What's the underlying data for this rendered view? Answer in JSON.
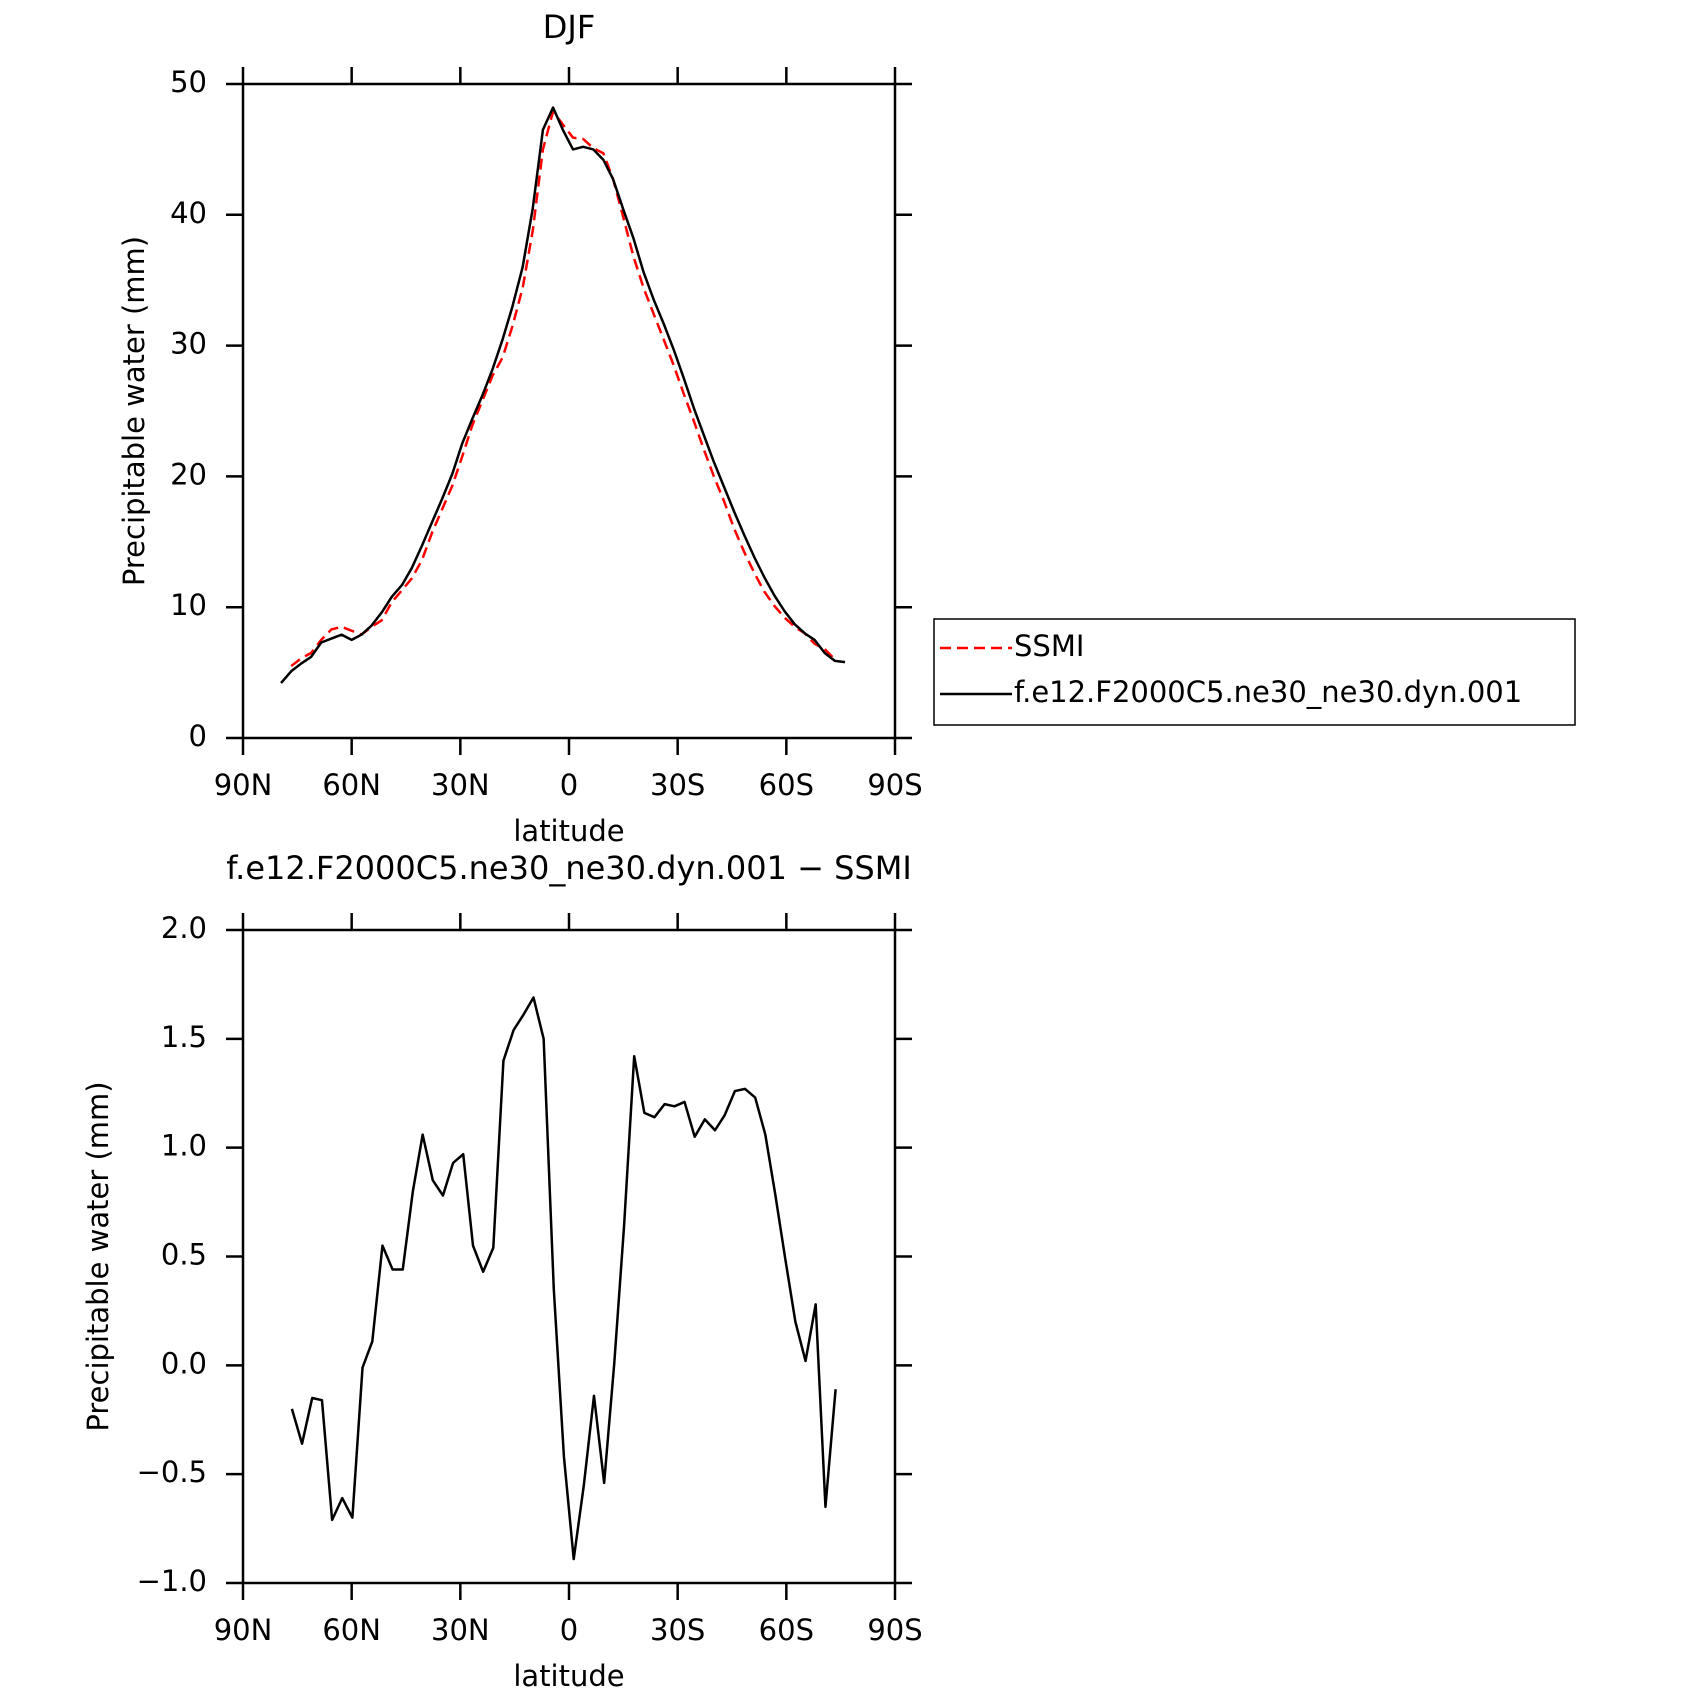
{
  "chart_data": [
    {
      "type": "line",
      "title": "DJF",
      "xlabel": "latitude",
      "ylabel": "Precipitable water (mm)",
      "x": [
        79.5,
        76.7,
        73.9,
        71.2,
        68.4,
        65.6,
        62.8,
        60.0,
        57.3,
        54.5,
        51.7,
        48.9,
        46.1,
        43.4,
        40.6,
        37.8,
        35.0,
        32.2,
        29.5,
        26.7,
        23.9,
        21.1,
        18.3,
        15.6,
        12.8,
        10.0,
        7.2,
        4.4,
        1.7,
        -1.1,
        -3.9,
        -6.7,
        -9.5,
        -12.2,
        -15.0,
        -17.8,
        -20.6,
        -23.4,
        -26.1,
        -28.9,
        -31.7,
        -34.5,
        -37.3,
        -40.0,
        -42.8,
        -45.6,
        -48.4,
        -51.2,
        -53.9,
        -56.7,
        -59.5,
        -62.3,
        -65.1,
        -67.8,
        -70.6,
        -73.4,
        -76.2
      ],
      "series": [
        {
          "name": "SSMI",
          "color": "#ff0000",
          "linestyle": "dashed",
          "values": [
            null,
            5.5,
            6.1,
            6.5,
            7.5,
            8.3,
            8.5,
            8.2,
            7.9,
            8.5,
            9.0,
            10.4,
            11.3,
            12.2,
            13.6,
            15.7,
            17.5,
            19.3,
            21.5,
            23.9,
            25.8,
            27.7,
            29.1,
            31.5,
            34.4,
            38.8,
            45.0,
            47.9,
            46.9,
            45.9,
            45.8,
            45.1,
            44.7,
            42.7,
            39.8,
            36.8,
            34.4,
            32.4,
            30.5,
            28.5,
            26.3,
            24.2,
            22.0,
            20.0,
            18.1,
            16.0,
            14.2,
            12.6,
            11.2,
            10.1,
            9.2,
            8.5,
            8.0,
            7.2,
            6.8,
            6.0,
            null
          ]
        },
        {
          "name": "f.e12.F2000C5.ne30_ne30.dyn.001",
          "color": "#000000",
          "linestyle": "solid",
          "values": [
            4.2,
            5.1,
            5.7,
            6.2,
            7.3,
            7.6,
            7.9,
            7.5,
            7.9,
            8.6,
            9.6,
            10.8,
            11.7,
            13.0,
            14.7,
            16.5,
            18.3,
            20.2,
            22.5,
            24.4,
            26.2,
            28.2,
            30.5,
            33.0,
            36.0,
            40.5,
            46.5,
            48.2,
            46.5,
            45.0,
            45.2,
            45.0,
            44.2,
            42.7,
            40.4,
            38.2,
            35.6,
            33.5,
            31.7,
            29.7,
            27.5,
            25.2,
            23.1,
            21.1,
            19.2,
            17.3,
            15.5,
            13.8,
            12.3,
            10.9,
            9.7,
            8.7,
            8.0,
            7.5,
            6.5,
            5.9,
            5.8
          ]
        }
      ],
      "xlim": [
        90,
        -90
      ],
      "xticks": [
        {
          "value": 90,
          "label": "90N"
        },
        {
          "value": 60,
          "label": "60N"
        },
        {
          "value": 30,
          "label": "30N"
        },
        0,
        {
          "value": -30,
          "label": "30S"
        },
        {
          "value": -60,
          "label": "60S"
        },
        {
          "value": -90,
          "label": "90S"
        }
      ],
      "ylim": [
        0,
        50
      ],
      "yticks": [
        0,
        10,
        20,
        30,
        40,
        50
      ],
      "legend": "outside right"
    },
    {
      "type": "line",
      "title": "f.e12.F2000C5.ne30_ne30.dyn.001 − SSMI",
      "xlabel": "latitude",
      "ylabel": "Precipitable water (mm)",
      "x": [
        76.5,
        73.7,
        70.9,
        68.2,
        65.4,
        62.6,
        59.8,
        57.0,
        54.3,
        51.5,
        48.7,
        45.9,
        43.1,
        40.4,
        37.6,
        34.8,
        32.0,
        29.2,
        26.5,
        23.7,
        20.9,
        18.1,
        15.3,
        12.6,
        9.8,
        7.0,
        4.2,
        1.4,
        -1.3,
        -4.1,
        -6.9,
        -9.7,
        -12.5,
        -15.2,
        -18.0,
        -20.8,
        -23.6,
        -26.4,
        -29.1,
        -31.9,
        -34.7,
        -37.5,
        -40.3,
        -43.0,
        -45.8,
        -48.6,
        -51.4,
        -54.2,
        -56.9,
        -59.7,
        -62.5,
        -65.3,
        -68.1,
        -70.8,
        -73.6
      ],
      "series": [
        {
          "color": "#000000",
          "linestyle": "solid",
          "values": [
            -0.2,
            -0.36,
            -0.15,
            -0.16,
            -0.71,
            -0.61,
            -0.7,
            -0.01,
            0.11,
            0.55,
            0.44,
            0.44,
            0.8,
            1.06,
            0.85,
            0.78,
            0.93,
            0.97,
            0.55,
            0.43,
            0.54,
            1.4,
            1.54,
            1.61,
            1.69,
            1.5,
            0.35,
            -0.42,
            -0.89,
            -0.55,
            -0.14,
            -0.54,
            0.01,
            0.64,
            1.42,
            1.16,
            1.14,
            1.2,
            1.19,
            1.21,
            1.05,
            1.13,
            1.08,
            1.15,
            1.26,
            1.27,
            1.23,
            1.06,
            0.79,
            0.49,
            0.2,
            0.02,
            0.28,
            -0.65,
            -0.11
          ]
        }
      ],
      "xlim": [
        90,
        -90
      ],
      "xticks": [
        {
          "value": 90,
          "label": "90N"
        },
        {
          "value": 60,
          "label": "60N"
        },
        {
          "value": 30,
          "label": "30N"
        },
        0,
        {
          "value": -30,
          "label": "30S"
        },
        {
          "value": -60,
          "label": "60S"
        },
        {
          "value": -90,
          "label": "90S"
        }
      ],
      "ylim": [
        -1,
        2
      ],
      "yticks": [
        {
          "value": -1,
          "label": "−1.0"
        },
        {
          "value": -0.5,
          "label": "−0.5"
        },
        {
          "value": 0,
          "label": "0.0"
        },
        0.5,
        {
          "value": 1,
          "label": "1.0"
        },
        1.5,
        {
          "value": 2,
          "label": "2.0"
        }
      ]
    }
  ]
}
